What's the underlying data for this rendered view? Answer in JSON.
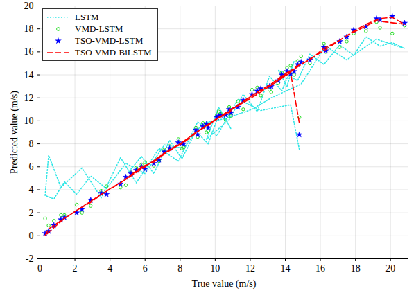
{
  "chart_data": {
    "type": "line",
    "x_label": "True value (m/s)",
    "y_label": "Predicted value (m/s)",
    "xlim": [
      0,
      21
    ],
    "ylim": [
      -2,
      20
    ],
    "xticks": [
      0,
      2,
      4,
      6,
      8,
      10,
      12,
      14,
      16,
      18,
      20
    ],
    "yticks": [
      -2,
      0,
      2,
      4,
      6,
      8,
      10,
      12,
      14,
      16,
      18,
      20
    ],
    "grid": true,
    "legend": "top-left",
    "x": [
      5.2,
      5.8,
      6.5,
      7.4,
      8.1,
      8.9,
      9.6,
      10.3,
      10.9,
      10.2,
      9.5,
      10.8,
      11.6,
      12.4,
      13.1,
      13.8,
      14.5,
      14.1,
      13.6,
      14.7,
      15.4,
      16.2,
      17.1,
      17.9,
      18.6,
      19.4,
      20.1,
      20.8,
      19.2,
      17.5,
      16.3,
      14.9,
      13.2,
      12.1,
      10.6,
      9.3,
      8.2,
      7.1,
      6.0,
      4.9,
      3.8,
      2.9,
      2.1,
      1.4,
      0.8,
      0.3,
      0.5,
      1.2,
      2.4,
      3.5,
      4.6,
      5.5,
      6.8,
      7.9,
      9.0,
      10.1,
      11.3,
      12.6,
      14.3,
      14.8
    ],
    "series": [
      {
        "name": "LSTM",
        "type": "line",
        "line_style": "dotted",
        "color": "#2ee6e6",
        "values": [
          5.8,
          6.9,
          5.4,
          8.3,
          6.7,
          9.1,
          8.0,
          10.9,
          9.3,
          11.2,
          8.4,
          10.1,
          12.3,
          10.8,
          13.9,
          12.6,
          15.2,
          13.0,
          14.4,
          13.5,
          15.8,
          14.9,
          16.6,
          15.7,
          17.3,
          16.5,
          16.8,
          16.3,
          17.1,
          15.3,
          16.5,
          13.2,
          12.0,
          11.0,
          10.2,
          9.8,
          7.6,
          7.9,
          5.4,
          6.3,
          4.1,
          5.2,
          3.6,
          4.7,
          3.2,
          3.5,
          7.0,
          4.2,
          5.9,
          3.3,
          6.8,
          4.6,
          7.6,
          6.5,
          9.9,
          8.7,
          11.9,
          10.9,
          11.4,
          7.5
        ]
      },
      {
        "name": "VMD-LSTM",
        "type": "scatter",
        "marker": "circle",
        "color": "#22dd22",
        "values": [
          5.5,
          6.2,
          6.1,
          7.8,
          7.6,
          9.4,
          9.1,
          10.6,
          10.4,
          10.8,
          9.0,
          11.2,
          11.0,
          12.9,
          12.7,
          14.2,
          14.0,
          14.6,
          13.3,
          15.2,
          15.0,
          16.7,
          16.4,
          17.6,
          17.8,
          18.1,
          17.6,
          18.3,
          18.6,
          16.9,
          16.0,
          15.6,
          12.5,
          12.7,
          10.1,
          9.8,
          7.7,
          7.5,
          6.4,
          4.4,
          4.3,
          2.6,
          2.7,
          1.8,
          1.3,
          1.5,
          0.9,
          1.8,
          2.0,
          3.9,
          4.2,
          5.9,
          6.5,
          8.4,
          8.6,
          10.5,
          11.7,
          12.2,
          14.8,
          10.3
        ]
      },
      {
        "name": "TSO-VMD-LSTM",
        "type": "scatter",
        "marker": "star",
        "color": "#0000ff",
        "values": [
          5.4,
          6.0,
          6.3,
          7.6,
          8.0,
          9.2,
          9.4,
          10.5,
          10.7,
          10.4,
          9.7,
          11.0,
          11.8,
          12.6,
          13.0,
          14.0,
          14.3,
          14.3,
          13.5,
          14.9,
          15.3,
          16.4,
          16.9,
          17.9,
          18.2,
          18.8,
          19.1,
          18.5,
          18.9,
          17.3,
          16.1,
          15.1,
          13.0,
          12.3,
          10.5,
          9.5,
          8.0,
          7.3,
          5.8,
          5.1,
          3.6,
          3.1,
          2.0,
          1.6,
          0.9,
          0.2,
          0.4,
          1.4,
          2.3,
          3.7,
          4.5,
          5.7,
          6.6,
          8.1,
          8.8,
          10.3,
          11.2,
          12.8,
          14.1,
          8.8
        ]
      },
      {
        "name": "TSO-VMD-BiLSTM",
        "type": "line",
        "line_style": "dashed",
        "color": "#ff0000",
        "values": [
          5.3,
          6.0,
          6.4,
          7.5,
          8.1,
          9.0,
          9.6,
          10.4,
          10.8,
          10.3,
          9.6,
          10.9,
          11.7,
          12.5,
          13.1,
          13.9,
          14.5,
          14.2,
          13.6,
          14.8,
          15.3,
          16.3,
          17.0,
          17.8,
          18.4,
          18.9,
          19.0,
          18.4,
          18.7,
          17.4,
          16.2,
          14.9,
          13.1,
          12.2,
          10.6,
          9.4,
          8.1,
          7.2,
          6.0,
          4.9,
          3.9,
          2.9,
          2.2,
          1.5,
          0.7,
          0.0,
          0.6,
          1.3,
          2.5,
          3.6,
          4.6,
          5.6,
          6.8,
          7.9,
          9.1,
          10.2,
          11.3,
          12.5,
          14.2,
          9.8
        ]
      }
    ]
  }
}
